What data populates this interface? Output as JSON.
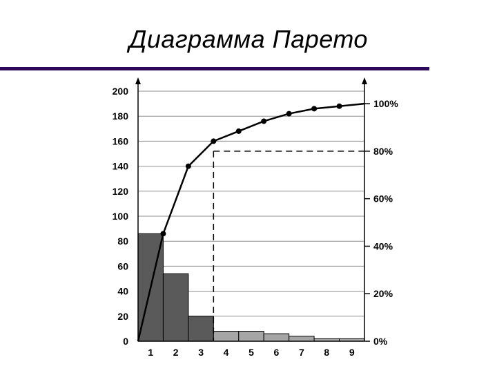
{
  "title": "Диаграмма Парето",
  "colors": {
    "rule": "#2d0a5e",
    "bar_major": "#5a5a5a",
    "bar_minor": "#a6a6a6",
    "grid": "#8c8c8c",
    "line": "#000000"
  },
  "chart_data": {
    "type": "bar",
    "title": "",
    "xlabel": "",
    "ylabel": "",
    "categories": [
      "1",
      "2",
      "3",
      "4",
      "5",
      "6",
      "7",
      "8",
      "9"
    ],
    "series": [
      {
        "values": [
          86,
          54,
          20,
          8,
          8,
          6,
          4,
          2,
          2
        ],
        "kind": "bar"
      },
      {
        "values": [
          86,
          140,
          160,
          168,
          176,
          182,
          186,
          188,
          190
        ],
        "kind": "cumulative-line"
      }
    ],
    "ylim": [
      0,
      200
    ],
    "y_ticks": [
      "0",
      "20",
      "40",
      "60",
      "80",
      "100",
      "120",
      "140",
      "160",
      "180",
      "200"
    ],
    "y2_ticks": [
      "0%",
      "20%",
      "40%",
      "60%",
      "80%",
      "100%"
    ],
    "y2_range_of_y": [
      0,
      190
    ],
    "threshold_percent": 80,
    "major_bar_count": 3,
    "grid": true
  }
}
